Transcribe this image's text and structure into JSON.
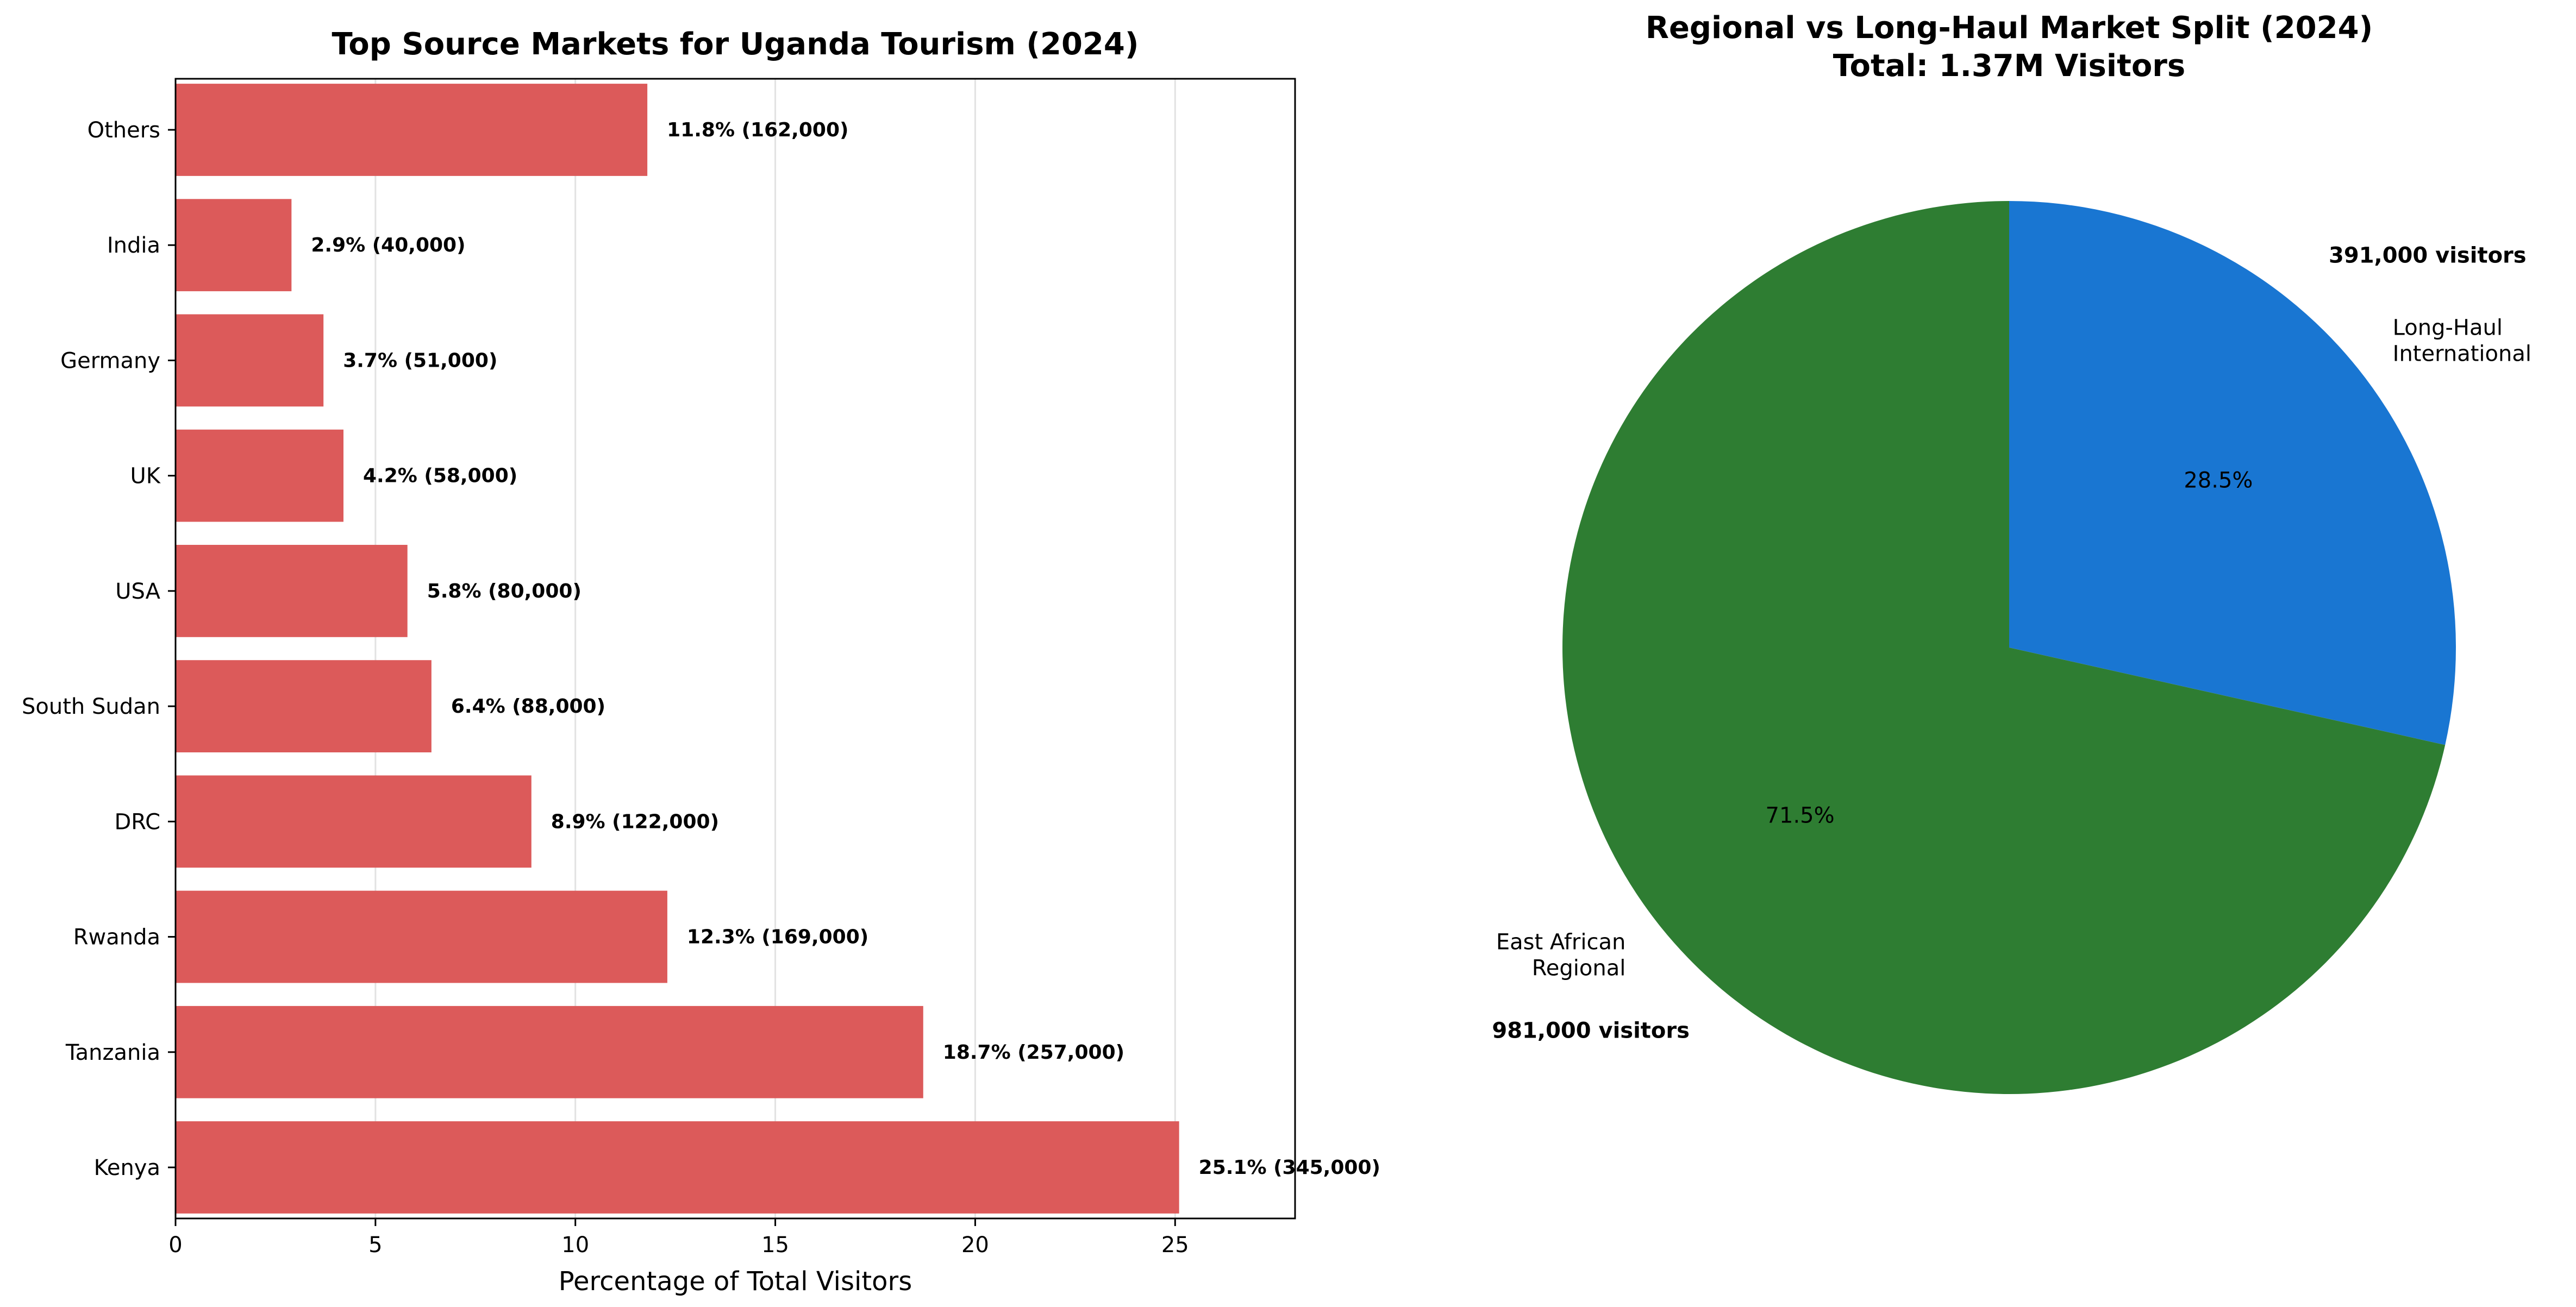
{
  "chart_data": [
    {
      "type": "bar",
      "orientation": "horizontal",
      "title": "Top Source Markets for Uganda Tourism (2024)",
      "xlabel": "Percentage of Total Visitors",
      "ylabel": "",
      "categories": [
        "Kenya",
        "Tanzania",
        "Rwanda",
        "DRC",
        "South Sudan",
        "USA",
        "UK",
        "Germany",
        "India",
        "Others"
      ],
      "values": [
        25.1,
        18.7,
        12.3,
        8.9,
        6.4,
        5.8,
        4.2,
        3.7,
        2.9,
        11.8
      ],
      "data_labels": [
        "25.1% (345,000)",
        "18.7% (257,000)",
        "12.3% (169,000)",
        "8.9% (122,000)",
        "6.4% (88,000)",
        "5.8% (80,000)",
        "4.2% (58,000)",
        "3.7% (51,000)",
        "2.9% (40,000)",
        "11.8% (162,000)"
      ],
      "xlim": [
        0,
        28
      ],
      "xticks": [
        0,
        5,
        10,
        15,
        20,
        25
      ],
      "xtick_labels": [
        "0",
        "5",
        "10",
        "15",
        "20",
        "25"
      ],
      "grid": "vertical",
      "color": "#dc5a5a"
    },
    {
      "type": "pie",
      "title": "Regional vs Long-Haul Market Split (2024)",
      "subtitle": "Total: 1.37M Visitors",
      "slices": [
        {
          "label": "Long-Haul\nInternational",
          "value": 28.5,
          "pct_label": "28.5%",
          "count_label": "391,000 visitors",
          "color": "#1976d2"
        },
        {
          "label": "East African\nRegional",
          "value": 71.5,
          "pct_label": "71.5%",
          "count_label": "981,000 visitors",
          "color": "#2e7d32"
        }
      ],
      "start_angle": "top, clockwise"
    }
  ]
}
